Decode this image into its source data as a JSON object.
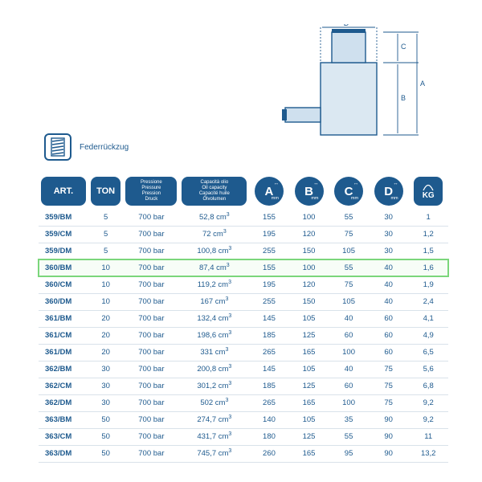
{
  "feder": {
    "label": "Federrückzug"
  },
  "diagram": {
    "labels": [
      "A",
      "B",
      "C",
      "D"
    ],
    "stroke": "#1e5a8e",
    "fill": "#dbe8f2"
  },
  "headers": {
    "art": "ART.",
    "ton": "TON",
    "pressure": [
      "Pressione",
      "Pressure",
      "Pression",
      "Druck"
    ],
    "capacity": [
      "Capacità olio",
      "Oil capacity",
      "Capacité huile",
      "Ölvolumen"
    ],
    "dims": [
      "A",
      "B",
      "C",
      "D"
    ],
    "dim_unit": "mm",
    "kg": "KG"
  },
  "highlight_row": 3,
  "rows": [
    {
      "art": "359/BM",
      "ton": "5",
      "pres": "700 bar",
      "cap": "52,8",
      "a": "155",
      "b": "100",
      "c": "55",
      "d": "30",
      "kg": "1"
    },
    {
      "art": "359/CM",
      "ton": "5",
      "pres": "700 bar",
      "cap": "72",
      "a": "195",
      "b": "120",
      "c": "75",
      "d": "30",
      "kg": "1,2"
    },
    {
      "art": "359/DM",
      "ton": "5",
      "pres": "700 bar",
      "cap": "100,8",
      "a": "255",
      "b": "150",
      "c": "105",
      "d": "30",
      "kg": "1,5"
    },
    {
      "art": "360/BM",
      "ton": "10",
      "pres": "700 bar",
      "cap": "87,4",
      "a": "155",
      "b": "100",
      "c": "55",
      "d": "40",
      "kg": "1,6"
    },
    {
      "art": "360/CM",
      "ton": "10",
      "pres": "700 bar",
      "cap": "119,2",
      "a": "195",
      "b": "120",
      "c": "75",
      "d": "40",
      "kg": "1,9"
    },
    {
      "art": "360/DM",
      "ton": "10",
      "pres": "700 bar",
      "cap": "167",
      "a": "255",
      "b": "150",
      "c": "105",
      "d": "40",
      "kg": "2,4"
    },
    {
      "art": "361/BM",
      "ton": "20",
      "pres": "700 bar",
      "cap": "132,4",
      "a": "145",
      "b": "105",
      "c": "40",
      "d": "60",
      "kg": "4,1"
    },
    {
      "art": "361/CM",
      "ton": "20",
      "pres": "700 bar",
      "cap": "198,6",
      "a": "185",
      "b": "125",
      "c": "60",
      "d": "60",
      "kg": "4,9"
    },
    {
      "art": "361/DM",
      "ton": "20",
      "pres": "700 bar",
      "cap": "331",
      "a": "265",
      "b": "165",
      "c": "100",
      "d": "60",
      "kg": "6,5"
    },
    {
      "art": "362/BM",
      "ton": "30",
      "pres": "700 bar",
      "cap": "200,8",
      "a": "145",
      "b": "105",
      "c": "40",
      "d": "75",
      "kg": "5,6"
    },
    {
      "art": "362/CM",
      "ton": "30",
      "pres": "700 bar",
      "cap": "301,2",
      "a": "185",
      "b": "125",
      "c": "60",
      "d": "75",
      "kg": "6,8"
    },
    {
      "art": "362/DM",
      "ton": "30",
      "pres": "700 bar",
      "cap": "502",
      "a": "265",
      "b": "165",
      "c": "100",
      "d": "75",
      "kg": "9,2"
    },
    {
      "art": "363/BM",
      "ton": "50",
      "pres": "700 bar",
      "cap": "274,7",
      "a": "140",
      "b": "105",
      "c": "35",
      "d": "90",
      "kg": "9,2"
    },
    {
      "art": "363/CM",
      "ton": "50",
      "pres": "700 bar",
      "cap": "431,7",
      "a": "180",
      "b": "125",
      "c": "55",
      "d": "90",
      "kg": "11"
    },
    {
      "art": "363/DM",
      "ton": "50",
      "pres": "700 bar",
      "cap": "745,7",
      "a": "260",
      "b": "165",
      "c": "95",
      "d": "90",
      "kg": "13,2"
    }
  ]
}
